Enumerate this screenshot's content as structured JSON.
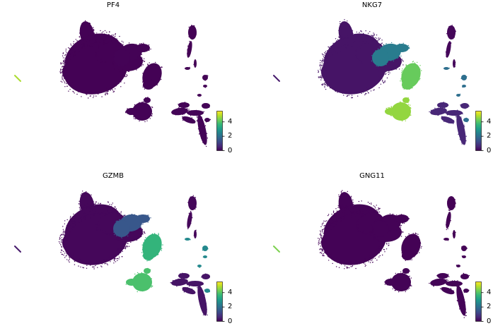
{
  "chart_data": [
    {
      "type": "scatter",
      "title": "PF4",
      "colormap": "viridis",
      "colorbar": {
        "ticks": [
          "0",
          "2",
          "4"
        ],
        "range": [
          0,
          5.5
        ]
      },
      "cluster_levels": {
        "main_mass": 0.02,
        "right_lobe": 0.03,
        "right_blob": 0.02,
        "lower_blob": 0.03,
        "right_arms": 0.05,
        "tall_strip": 0.02,
        "small_fragments": 0.04,
        "left_dash": 4.8
      }
    },
    {
      "type": "scatter",
      "title": "NKG7",
      "colormap": "viridis",
      "colorbar": {
        "ticks": [
          "0",
          "2",
          "4"
        ],
        "range": [
          0,
          5.5
        ]
      },
      "cluster_levels": {
        "main_mass": 0.3,
        "right_lobe": 2.3,
        "right_blob": 4.2,
        "lower_blob": 4.6,
        "right_arms": 0.6,
        "tall_strip": 0.1,
        "small_fragments": 2.0,
        "left_dash": 0.4
      }
    },
    {
      "type": "scatter",
      "title": "GZMB",
      "colormap": "viridis",
      "colorbar": {
        "ticks": [
          "0",
          "2",
          "4"
        ],
        "range": [
          0,
          5.5
        ]
      },
      "cluster_levels": {
        "main_mass": 0.1,
        "right_lobe": 1.5,
        "right_blob": 3.6,
        "lower_blob": 3.9,
        "right_arms": 0.3,
        "tall_strip": 0.1,
        "small_fragments": 2.6,
        "left_dash": 0.4
      }
    },
    {
      "type": "scatter",
      "title": "GNG11",
      "colormap": "viridis",
      "colorbar": {
        "ticks": [
          "0",
          "2",
          "4"
        ],
        "range": [
          0,
          5.5
        ]
      },
      "cluster_levels": {
        "main_mass": 0.03,
        "right_lobe": 0.03,
        "right_blob": 0.02,
        "lower_blob": 0.03,
        "right_arms": 0.05,
        "tall_strip": 0.02,
        "small_fragments": 0.04,
        "left_dash": 4.4
      }
    }
  ]
}
